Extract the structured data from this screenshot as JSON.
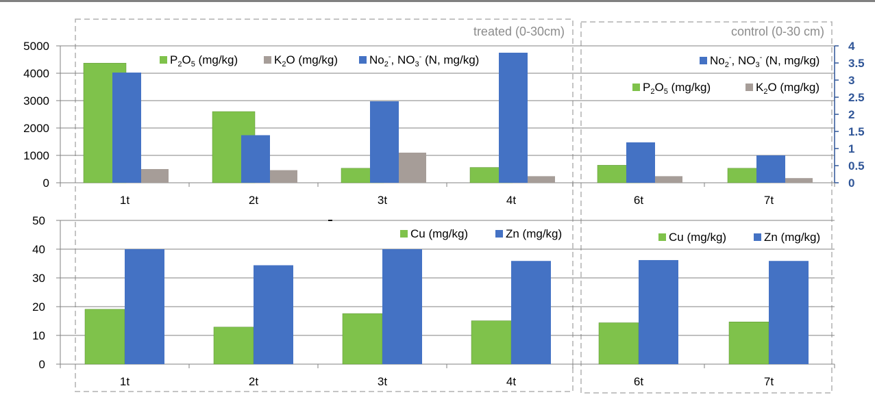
{
  "colors": {
    "green": "#7fc24b",
    "gray": "#a69d98",
    "blue": "#4472c4",
    "axis_right": "#2f5597",
    "grid": "#808080",
    "frame_dash": "#b0b0b0"
  },
  "panels": {
    "treated_title": "treated (0-30cm)",
    "control_title": "control (0-30 cm)"
  },
  "chart_data": [
    {
      "type": "bar",
      "categories": [
        "1t",
        "2t",
        "3t",
        "4t",
        "6t",
        "7t"
      ],
      "ylim": [
        0,
        5000
      ],
      "yticks": [
        "0",
        "1000",
        "2000",
        "3000",
        "4000",
        "5000"
      ],
      "y2lim": [
        0,
        4
      ],
      "y2ticks": [
        "0",
        "0.5",
        "1",
        "1.5",
        "2",
        "2.5",
        "3",
        "3.5",
        "4"
      ],
      "series": [
        {
          "name": "P2O5 (mg/kg)",
          "label_base": "P",
          "label_tail": "O",
          "label_unit": " (mg/kg)",
          "sub1": "2",
          "sub2": "5",
          "axis": "left",
          "color": "green",
          "values": [
            4370,
            2600,
            530,
            560,
            640,
            530
          ]
        },
        {
          "name": "K2O (mg/kg)",
          "label_base": "K",
          "label_tail": "O (mg/kg)",
          "sub1": "2",
          "axis": "left",
          "color": "gray",
          "values": [
            500,
            460,
            1100,
            240,
            240,
            170
          ]
        },
        {
          "name": "No2-, NO3- (N, mg/kg)",
          "label_base": "No",
          "label_mid": ", NO",
          "label_tail": " (N, mg/kg)",
          "sub1": "2",
          "sup1": "-",
          "sub2": "3",
          "sup2": "-",
          "axis": "right",
          "color": "blue",
          "values": [
            3.22,
            1.39,
            2.38,
            3.8,
            1.18,
            0.8
          ]
        }
      ],
      "legend": {
        "treated": "top, one row",
        "control": "top-right, two rows"
      }
    },
    {
      "type": "bar",
      "categories": [
        "1t",
        "2t",
        "3t",
        "4t",
        "6t",
        "7t"
      ],
      "ylim": [
        0,
        50
      ],
      "yticks": [
        "0",
        "10",
        "20",
        "30",
        "40",
        "50"
      ],
      "series": [
        {
          "name": "Cu (mg/kg)",
          "color": "green",
          "values": [
            19.1,
            12.9,
            17.6,
            15.1,
            14.4,
            14.7
          ]
        },
        {
          "name": "Zn (mg/kg)",
          "color": "blue",
          "values": [
            40,
            34.4,
            40,
            35.9,
            36.2,
            35.9
          ]
        }
      ],
      "legend": "top-right"
    }
  ]
}
